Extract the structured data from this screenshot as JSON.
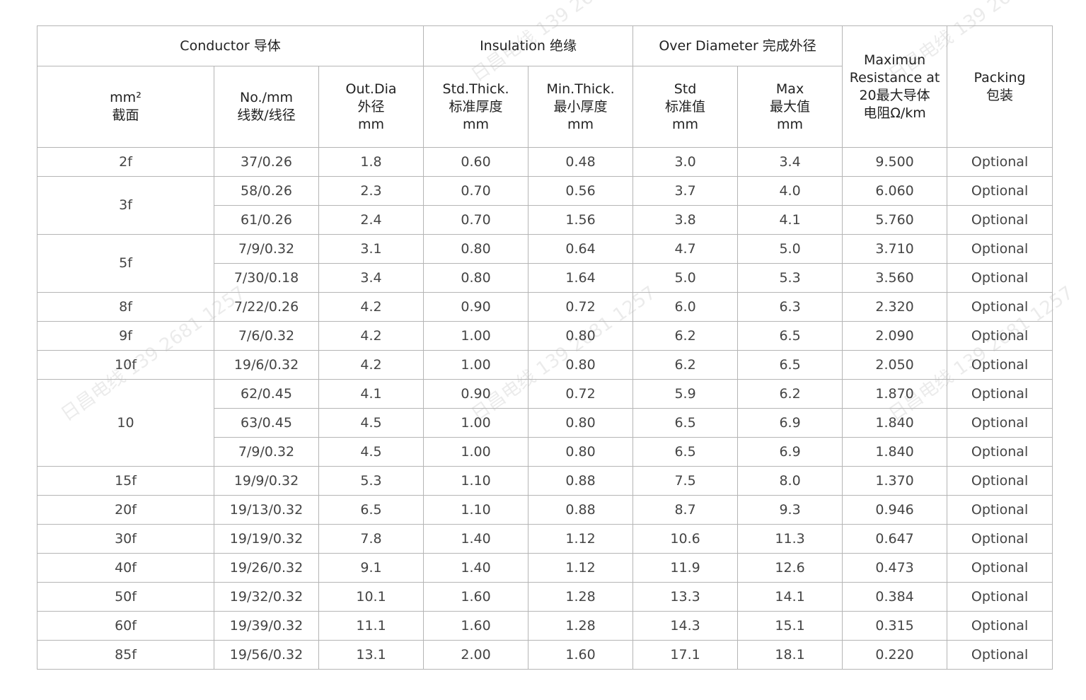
{
  "header": {
    "conductor": "Conductor 导体",
    "insulation": "Insulation 绝缘",
    "over_diameter": "Over Diameter 完成外径",
    "resistance": [
      "Maximun",
      "Resistance at",
      "20最大导体",
      "电阻Ω/km"
    ],
    "packing": [
      "Packing",
      "包装"
    ],
    "section": [
      "mm²",
      "截面"
    ],
    "no_mm": [
      "No./mm",
      "线数/线径"
    ],
    "out_dia": [
      "Out.Dia",
      "外径",
      "mm"
    ],
    "std_thick": [
      "Std.Thick.",
      "标准厚度",
      "mm"
    ],
    "min_thick": [
      "Min.Thick.",
      "最小厚度",
      "mm"
    ],
    "std": [
      "Std",
      "标准值",
      "mm"
    ],
    "max": [
      "Max",
      "最大值",
      "mm"
    ]
  },
  "rows": [
    {
      "section": "2f",
      "span": 1,
      "cells": [
        "37/0.26",
        "1.8",
        "0.60",
        "0.48",
        "3.0",
        "3.4",
        "9.500",
        "Optional"
      ]
    },
    {
      "section": "3f",
      "span": 2,
      "cells": [
        "58/0.26",
        "2.3",
        "0.70",
        "0.56",
        "3.7",
        "4.0",
        "6.060",
        "Optional"
      ]
    },
    {
      "cells": [
        "61/0.26",
        "2.4",
        "0.70",
        "1.56",
        "3.8",
        "4.1",
        "5.760",
        "Optional"
      ]
    },
    {
      "section": "5f",
      "span": 2,
      "cells": [
        "7/9/0.32",
        "3.1",
        "0.80",
        "0.64",
        "4.7",
        "5.0",
        "3.710",
        "Optional"
      ]
    },
    {
      "cells": [
        "7/30/0.18",
        "3.4",
        "0.80",
        "1.64",
        "5.0",
        "5.3",
        "3.560",
        "Optional"
      ]
    },
    {
      "section": "8f",
      "span": 1,
      "cells": [
        "7/22/0.26",
        "4.2",
        "0.90",
        "0.72",
        "6.0",
        "6.3",
        "2.320",
        "Optional"
      ]
    },
    {
      "section": "9f",
      "span": 1,
      "cells": [
        "7/6/0.32",
        "4.2",
        "1.00",
        "0.80",
        "6.2",
        "6.5",
        "2.090",
        "Optional"
      ]
    },
    {
      "section": "10f",
      "span": 1,
      "cells": [
        "19/6/0.32",
        "4.2",
        "1.00",
        "0.80",
        "6.2",
        "6.5",
        "2.050",
        "Optional"
      ]
    },
    {
      "section": "10",
      "span": 3,
      "cells": [
        "62/0.45",
        "4.1",
        "0.90",
        "0.72",
        "5.9",
        "6.2",
        "1.870",
        "Optional"
      ]
    },
    {
      "cells": [
        "63/0.45",
        "4.5",
        "1.00",
        "0.80",
        "6.5",
        "6.9",
        "1.840",
        "Optional"
      ]
    },
    {
      "cells": [
        "7/9/0.32",
        "4.5",
        "1.00",
        "0.80",
        "6.5",
        "6.9",
        "1.840",
        "Optional"
      ]
    },
    {
      "section": "15f",
      "span": 1,
      "cells": [
        "19/9/0.32",
        "5.3",
        "1.10",
        "0.88",
        "7.5",
        "8.0",
        "1.370",
        "Optional"
      ]
    },
    {
      "section": "20f",
      "span": 1,
      "cells": [
        "19/13/0.32",
        "6.5",
        "1.10",
        "0.88",
        "8.7",
        "9.3",
        "0.946",
        "Optional"
      ]
    },
    {
      "section": "30f",
      "span": 1,
      "cells": [
        "19/19/0.32",
        "7.8",
        "1.40",
        "1.12",
        "10.6",
        "11.3",
        "0.647",
        "Optional"
      ]
    },
    {
      "section": "40f",
      "span": 1,
      "cells": [
        "19/26/0.32",
        "9.1",
        "1.40",
        "1.12",
        "11.9",
        "12.6",
        "0.473",
        "Optional"
      ]
    },
    {
      "section": "50f",
      "span": 1,
      "cells": [
        "19/32/0.32",
        "10.1",
        "1.60",
        "1.28",
        "13.3",
        "14.1",
        "0.384",
        "Optional"
      ]
    },
    {
      "section": "60f",
      "span": 1,
      "cells": [
        "19/39/0.32",
        "11.1",
        "1.60",
        "1.28",
        "14.3",
        "15.1",
        "0.315",
        "Optional"
      ]
    },
    {
      "section": "85f",
      "span": 1,
      "cells": [
        "19/56/0.32",
        "13.1",
        "2.00",
        "1.60",
        "17.1",
        "18.1",
        "0.220",
        "Optional"
      ]
    }
  ],
  "watermark": "日昌电线 139 2681 1257"
}
